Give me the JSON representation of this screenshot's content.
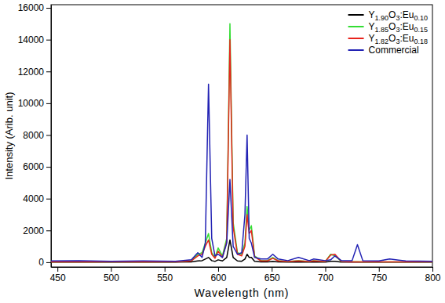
{
  "chart_data": {
    "type": "line",
    "x_label": "Wavelength (nm)",
    "y_label": "Intensity (Arib. unit)",
    "x": [
      440,
      470,
      500,
      530,
      560,
      575,
      581,
      585,
      588,
      591,
      594,
      597,
      600,
      604,
      608,
      611,
      614,
      618,
      622,
      625,
      627,
      629,
      631,
      634,
      640,
      646,
      651,
      656,
      665,
      675,
      685,
      689,
      700,
      705,
      709,
      715,
      725,
      730,
      735,
      750,
      760,
      775,
      800
    ],
    "series": [
      {
        "name": "Y1.90O3:Eu0.10",
        "color": "#000000",
        "values": [
          10,
          10,
          10,
          10,
          10,
          20,
          80,
          100,
          200,
          300,
          100,
          50,
          150,
          80,
          300,
          1400,
          300,
          80,
          60,
          200,
          500,
          300,
          300,
          60,
          20,
          20,
          40,
          20,
          10,
          20,
          10,
          20,
          10,
          60,
          60,
          10,
          10,
          10,
          10,
          10,
          10,
          10,
          10
        ]
      },
      {
        "name": "Y1.85O3:Eu0.15",
        "color": "#33dd33",
        "values": [
          20,
          20,
          20,
          20,
          20,
          100,
          500,
          600,
          1200,
          1800,
          600,
          300,
          900,
          400,
          1500,
          15000,
          2500,
          600,
          500,
          1200,
          3500,
          2000,
          2300,
          400,
          100,
          100,
          300,
          100,
          50,
          100,
          50,
          100,
          50,
          500,
          400,
          50,
          30,
          30,
          20,
          20,
          20,
          20,
          20
        ]
      },
      {
        "name": "Y1.82O3:Eu0.18",
        "color": "#e8231c",
        "values": [
          20,
          20,
          20,
          20,
          20,
          80,
          400,
          500,
          1000,
          1400,
          500,
          250,
          700,
          300,
          1300,
          14000,
          2200,
          500,
          400,
          1000,
          3000,
          1800,
          2000,
          350,
          80,
          80,
          250,
          80,
          40,
          80,
          40,
          80,
          40,
          450,
          500,
          40,
          20,
          20,
          20,
          20,
          20,
          20,
          20
        ]
      },
      {
        "name": "Commercial",
        "color": "#2222b4",
        "values": [
          80,
          100,
          60,
          80,
          60,
          150,
          600,
          300,
          1200,
          11200,
          1500,
          400,
          500,
          300,
          1200,
          5200,
          1000,
          500,
          600,
          3000,
          8000,
          1500,
          1200,
          300,
          200,
          200,
          500,
          200,
          100,
          300,
          100,
          200,
          100,
          150,
          400,
          100,
          100,
          1100,
          100,
          80,
          200,
          80,
          60
        ]
      }
    ],
    "xlim": [
      444,
      800
    ],
    "xticks": [
      450,
      500,
      550,
      600,
      650,
      700,
      750,
      800
    ],
    "ylim": [
      -300,
      16200
    ],
    "yticks": [
      0,
      2000,
      4000,
      6000,
      8000,
      10000,
      12000,
      14000,
      16000
    ],
    "legend": "upper right"
  }
}
